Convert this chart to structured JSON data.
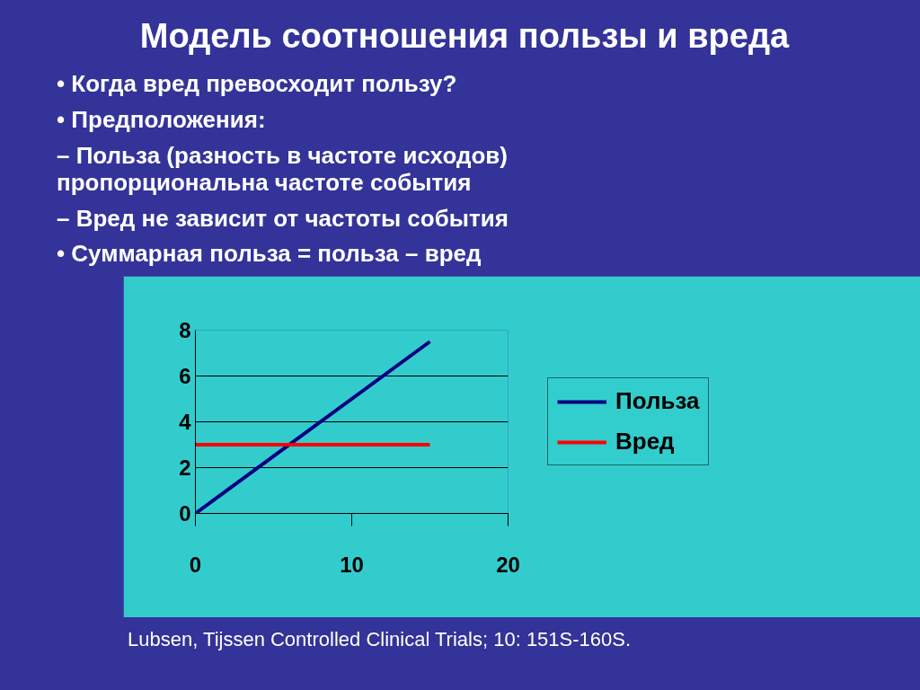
{
  "chart_data": {
    "type": "line",
    "title": "Модель соотношения пользы и вреда",
    "annotations": [
      "• Когда вред превосходит пользу?",
      "• Предположения:",
      "– Польза (разность в частоте исходов) пропорциональна частоте события",
      "– Вред не зависит от частоты события",
      "• Суммарная польза = польза – вред",
      "Lubsen, Tijssen Controlled Clinical Trials; 10:  151S-160S."
    ],
    "x": [
      0,
      15
    ],
    "series": [
      {
        "name": "Польза",
        "color": "#000080",
        "values": [
          0,
          7.5
        ]
      },
      {
        "name": "Вред",
        "color": "#ff0000",
        "values": [
          3,
          3
        ]
      }
    ],
    "xlim": [
      0,
      20
    ],
    "xticks": [
      0,
      10,
      20
    ],
    "ylim": [
      0,
      8
    ],
    "yticks": [
      0,
      2,
      4,
      6,
      8
    ],
    "grid": "y",
    "legend": "right",
    "line_style": "solid",
    "marker": "none"
  }
}
